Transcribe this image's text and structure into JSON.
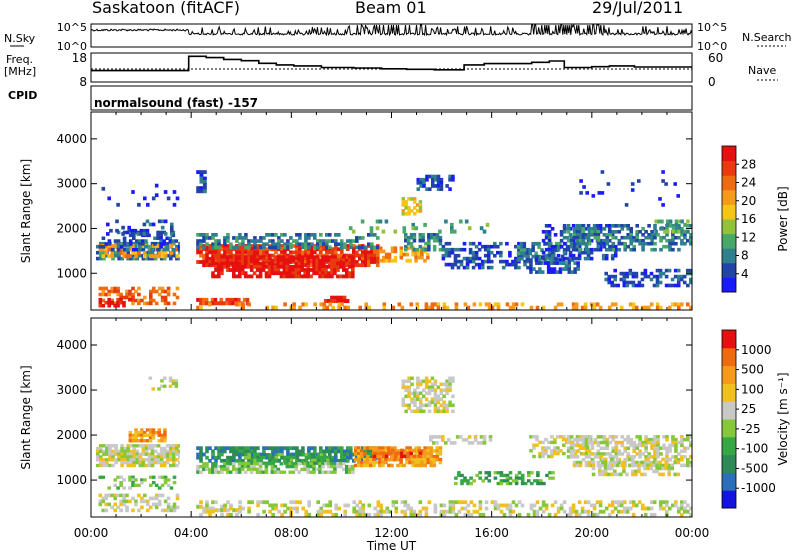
{
  "header": {
    "station": "Saskatoon (fitACF)",
    "beam": "Beam 01",
    "date": "29/Jul/2011"
  },
  "left_labels": {
    "nsky": "N.Sky",
    "freq": "Freq.",
    "mhz": "[MHz]",
    "cpid": "CPID"
  },
  "right_labels": {
    "nsearch": "N.Search",
    "nave": "Nave"
  },
  "cpid_text": "normalsound (fast) -157",
  "colors": {
    "power": [
      "#1a1aff",
      "#2243a8",
      "#2f7f8f",
      "#48a86a",
      "#92c23a",
      "#f5c518",
      "#f59a1a",
      "#f06a10",
      "#e83a0e",
      "#e61010"
    ],
    "velocity": [
      "#1414e0",
      "#2a6fb8",
      "#2e8b57",
      "#35a845",
      "#86c83a",
      "#c8c8c8",
      "#f0c020",
      "#f59a1a",
      "#f06a10",
      "#e61010"
    ]
  },
  "chart_data": [
    {
      "type": "line",
      "name": "noise",
      "ylabel": "N.Sky",
      "y_ticks_left": [
        "10^5",
        "10^0"
      ],
      "y_ticks_right": [
        "10^5",
        "10^0"
      ]
    },
    {
      "type": "line",
      "name": "frequency",
      "ylabel": "Freq. [MHz]",
      "y_ticks_left": [
        "18",
        "8"
      ],
      "y_ticks_right": [
        "60",
        "0"
      ],
      "x": [
        0.0,
        3.9,
        3.9,
        4.6,
        5.3,
        6.0,
        6.7,
        7.4,
        8.1,
        9.2,
        10.5,
        11.6,
        12.6,
        13.7,
        14.9,
        15.7,
        16.6,
        17.6,
        18.3,
        18.9,
        20.0,
        20.7,
        21.7,
        24.0
      ],
      "y": [
        12.0,
        12.0,
        17.5,
        17.0,
        16.3,
        15.8,
        14.8,
        14.2,
        13.8,
        13.2,
        13.0,
        12.7,
        12.5,
        12.3,
        14.2,
        14.7,
        14.7,
        15.2,
        15.7,
        13.2,
        13.5,
        13.8,
        13.4,
        13.4
      ]
    },
    {
      "type": "heatmap",
      "name": "power",
      "ylabel": "Slant Range [km]",
      "xlim": [
        0,
        24
      ],
      "ylim": [
        180,
        4600
      ],
      "y_ticks": [
        "4000",
        "3000",
        "2000",
        "1000"
      ],
      "colorbar_label": "Power [dB]",
      "colorbar_ticks": [
        "28",
        "24",
        "20",
        "16",
        "12",
        "8",
        "4"
      ]
    },
    {
      "type": "heatmap",
      "name": "velocity",
      "ylabel": "Slant Range [km]",
      "xlabel": "Time UT",
      "xlim": [
        0,
        24
      ],
      "ylim": [
        180,
        4600
      ],
      "x_ticks": [
        "00:00",
        "04:00",
        "08:00",
        "12:00",
        "16:00",
        "20:00",
        "00:00"
      ],
      "y_ticks": [
        "4000",
        "3000",
        "2000",
        "1000"
      ],
      "colorbar_label": "Velocity [m s⁻¹]",
      "colorbar_ticks": [
        "1000",
        "500",
        "100",
        "25",
        "-25",
        "-100",
        "-500",
        "-1000"
      ]
    }
  ]
}
